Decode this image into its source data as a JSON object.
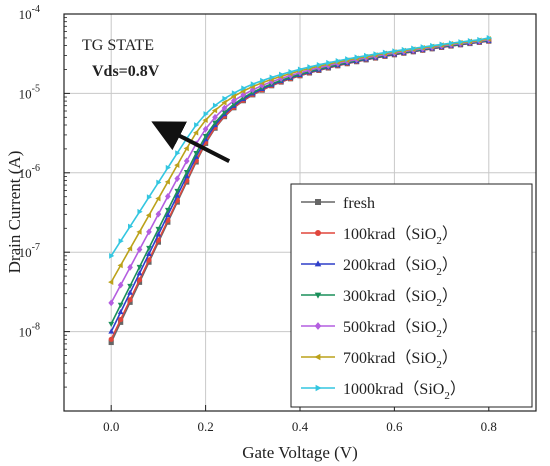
{
  "chart_data": {
    "type": "line",
    "x_axis": {
      "label": "Gate Voltage (V)",
      "range": [
        -0.1,
        0.9
      ],
      "ticks": [
        0.0,
        0.2,
        0.4,
        0.6,
        0.8
      ],
      "tick_labels": [
        "0.0",
        "0.2",
        "0.4",
        "0.6",
        "0.8"
      ]
    },
    "y_axis": {
      "label": "Drain Current (A)",
      "scale": "log",
      "range": [
        1e-09,
        0.0001
      ],
      "ticks": [
        1e-08,
        1e-07,
        1e-06,
        1e-05,
        0.0001
      ],
      "tick_labels": [
        {
          "base": "10",
          "exp": "-8"
        },
        {
          "base": "10",
          "exp": "-7"
        },
        {
          "base": "10",
          "exp": "-6"
        },
        {
          "base": "10",
          "exp": "-5"
        },
        {
          "base": "10",
          "exp": "-4"
        }
      ]
    },
    "grid": true,
    "legend_position": "bottom-right",
    "annotations": [
      {
        "id": "state",
        "text": "TG STATE"
      },
      {
        "id": "vds",
        "text": "Vds=0.8V"
      }
    ],
    "arrow": {
      "from": [
        0.25,
        1.4e-06
      ],
      "to": [
        0.1,
        4e-06
      ],
      "color": "#111111"
    },
    "x": [
      0.0,
      0.02,
      0.04,
      0.06,
      0.08,
      0.1,
      0.12,
      0.14,
      0.16,
      0.18,
      0.2,
      0.22,
      0.24,
      0.26,
      0.28,
      0.3,
      0.32,
      0.34,
      0.36,
      0.38,
      0.4,
      0.42,
      0.44,
      0.46,
      0.48,
      0.5,
      0.52,
      0.54,
      0.56,
      0.58,
      0.6,
      0.62,
      0.64,
      0.66,
      0.68,
      0.7,
      0.72,
      0.74,
      0.76,
      0.78,
      0.8
    ],
    "series": [
      {
        "name": "fresh",
        "sub": "",
        "suffix": "",
        "color": "#666666",
        "marker": "square",
        "values": [
          7.3e-09,
          1.31e-08,
          2.34e-08,
          4.18e-08,
          7.49e-08,
          1.34e-07,
          2.39e-07,
          4.28e-07,
          7.65e-07,
          1.37e-06,
          2.35e-06,
          3.65e-06,
          5.1e-06,
          6.6e-06,
          8.1e-06,
          9.6e-06,
          1.1e-05,
          1.25e-05,
          1.39e-05,
          1.53e-05,
          1.67e-05,
          1.81e-05,
          1.95e-05,
          2.09e-05,
          2.23e-05,
          2.37e-05,
          2.51e-05,
          2.65e-05,
          2.79e-05,
          2.93e-05,
          3.07e-05,
          3.21e-05,
          3.35e-05,
          3.5e-05,
          3.65e-05,
          3.8e-05,
          3.95e-05,
          4.1e-05,
          4.25e-05,
          4.4e-05,
          4.55e-05
        ]
      },
      {
        "name": "100krad（SiO",
        "sub": "2",
        "suffix": "）",
        "color": "#e0463c",
        "marker": "circle",
        "values": [
          8e-09,
          1.42e-08,
          2.52e-08,
          4.48e-08,
          7.97e-08,
          1.42e-07,
          2.52e-07,
          4.48e-07,
          7.96e-07,
          1.42e-06,
          2.42e-06,
          3.73e-06,
          5.19e-06,
          6.69e-06,
          8.2e-06,
          9.7e-06,
          1.11e-05,
          1.26e-05,
          1.4e-05,
          1.54e-05,
          1.68e-05,
          1.82e-05,
          1.96e-05,
          2.1e-05,
          2.24e-05,
          2.38e-05,
          2.52e-05,
          2.66e-05,
          2.8e-05,
          2.94e-05,
          3.08e-05,
          3.22e-05,
          3.36e-05,
          3.51e-05,
          3.66e-05,
          3.81e-05,
          3.96e-05,
          4.11e-05,
          4.26e-05,
          4.41e-05,
          4.56e-05
        ]
      },
      {
        "name": "200krad（SiO",
        "sub": "2",
        "suffix": "）",
        "color": "#2f3fc9",
        "marker": "triangle-up",
        "values": [
          1e-08,
          1.76e-08,
          3.09e-08,
          5.43e-08,
          9.53e-08,
          1.67e-07,
          2.94e-07,
          5.16e-07,
          9.06e-07,
          1.59e-06,
          2.65e-06,
          3.99e-06,
          5.47e-06,
          6.98e-06,
          8.5e-06,
          1e-05,
          1.14e-05,
          1.29e-05,
          1.43e-05,
          1.57e-05,
          1.71e-05,
          1.85e-05,
          1.99e-05,
          2.13e-05,
          2.27e-05,
          2.41e-05,
          2.55e-05,
          2.69e-05,
          2.83e-05,
          2.97e-05,
          3.11e-05,
          3.25e-05,
          3.39e-05,
          3.54e-05,
          3.69e-05,
          3.84e-05,
          3.99e-05,
          4.14e-05,
          4.29e-05,
          4.44e-05,
          4.6e-05
        ]
      },
      {
        "name": "300krad（SiO",
        "sub": "2",
        "suffix": "）",
        "color": "#1a8f5a",
        "marker": "triangle-down",
        "values": [
          1.25e-08,
          2.17e-08,
          3.76e-08,
          6.52e-08,
          1.13e-07,
          1.96e-07,
          3.4e-07,
          5.9e-07,
          1.02e-06,
          1.77e-06,
          2.9e-06,
          4.28e-06,
          5.78e-06,
          7.3e-06,
          8.83e-06,
          1.03e-05,
          1.18e-05,
          1.32e-05,
          1.46e-05,
          1.6e-05,
          1.74e-05,
          1.88e-05,
          2.02e-05,
          2.16e-05,
          2.3e-05,
          2.44e-05,
          2.58e-05,
          2.72e-05,
          2.86e-05,
          3e-05,
          3.14e-05,
          3.28e-05,
          3.42e-05,
          3.57e-05,
          3.72e-05,
          3.87e-05,
          4.02e-05,
          4.17e-05,
          4.32e-05,
          4.47e-05,
          4.65e-05
        ]
      },
      {
        "name": "500krad（SiO",
        "sub": "2",
        "suffix": "）",
        "color": "#b45ee0",
        "marker": "diamond",
        "values": [
          2.3e-08,
          3.85e-08,
          6.44e-08,
          1.08e-07,
          1.8e-07,
          3.02e-07,
          5.05e-07,
          8.44e-07,
          1.41e-06,
          2.32e-06,
          3.55e-06,
          5e-06,
          6.55e-06,
          8.1e-06,
          9.6e-06,
          1.11e-05,
          1.26e-05,
          1.4e-05,
          1.54e-05,
          1.68e-05,
          1.82e-05,
          1.96e-05,
          2.1e-05,
          2.24e-05,
          2.38e-05,
          2.52e-05,
          2.66e-05,
          2.8e-05,
          2.94e-05,
          3.08e-05,
          3.22e-05,
          3.36e-05,
          3.5e-05,
          3.65e-05,
          3.8e-05,
          3.95e-05,
          4.1e-05,
          4.25e-05,
          4.4e-05,
          4.55e-05,
          4.75e-05
        ]
      },
      {
        "name": "700krad（SiO",
        "sub": "2",
        "suffix": "）",
        "color": "#bca21a",
        "marker": "triangle-left",
        "values": [
          4.2e-08,
          6.82e-08,
          1.11e-07,
          1.8e-07,
          2.92e-07,
          4.74e-07,
          7.7e-07,
          1.25e-06,
          2.03e-06,
          3.2e-06,
          4.6e-06,
          6.1e-06,
          7.65e-06,
          9.2e-06,
          1.07e-05,
          1.22e-05,
          1.36e-05,
          1.5e-05,
          1.64e-05,
          1.78e-05,
          1.92e-05,
          2.06e-05,
          2.2e-05,
          2.34e-05,
          2.48e-05,
          2.62e-05,
          2.76e-05,
          2.9e-05,
          3.04e-05,
          3.18e-05,
          3.32e-05,
          3.46e-05,
          3.6e-05,
          3.75e-05,
          3.9e-05,
          4.05e-05,
          4.2e-05,
          4.35e-05,
          4.5e-05,
          4.65e-05,
          4.85e-05
        ]
      },
      {
        "name": "1000krad（SiO",
        "sub": "2",
        "suffix": "）",
        "color": "#33c6e0",
        "marker": "triangle-right",
        "values": [
          9e-08,
          1.38e-07,
          2.11e-07,
          3.23e-07,
          4.94e-07,
          7.56e-07,
          1.16e-06,
          1.77e-06,
          2.7e-06,
          4e-06,
          5.5e-06,
          7.05e-06,
          8.6e-06,
          1.01e-05,
          1.16e-05,
          1.31e-05,
          1.45e-05,
          1.59e-05,
          1.73e-05,
          1.87e-05,
          2.01e-05,
          2.15e-05,
          2.29e-05,
          2.43e-05,
          2.57e-05,
          2.71e-05,
          2.85e-05,
          2.99e-05,
          3.13e-05,
          3.27e-05,
          3.41e-05,
          3.55e-05,
          3.69e-05,
          3.84e-05,
          3.99e-05,
          4.14e-05,
          4.29e-05,
          4.44e-05,
          4.59e-05,
          4.74e-05,
          5e-05
        ]
      }
    ]
  }
}
